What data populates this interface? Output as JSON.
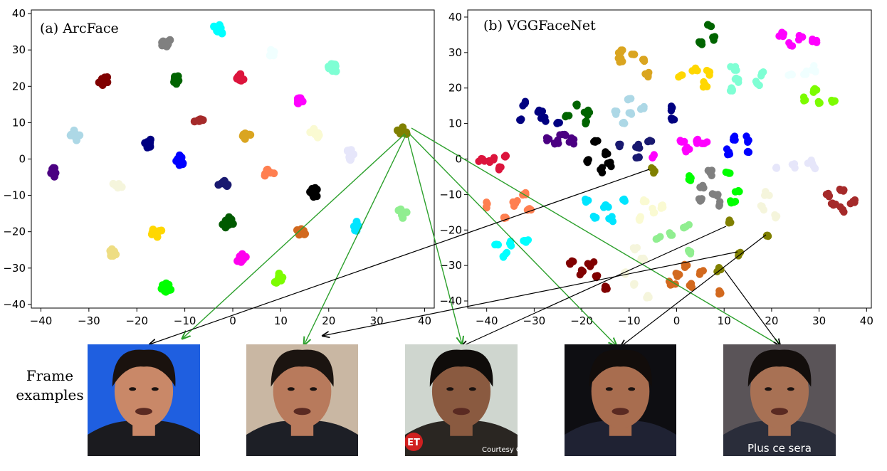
{
  "frames_label_line1": "Frame",
  "frames_label_line2": "examples",
  "frames": [
    {
      "bg": "#1f5fe0",
      "skin": "#c98868",
      "hair": "#1a120e",
      "shirt": "#1b1b1f",
      "overlay": ""
    },
    {
      "bg": "#c9b7a3",
      "skin": "#b87a5c",
      "hair": "#1b1410",
      "shirt": "#1d1f26",
      "overlay": ""
    },
    {
      "bg": "#cfd6cf",
      "skin": "#8a5a40",
      "hair": "#0f0c0a",
      "shirt": "#2a2622",
      "overlay": "Courtesy Cl",
      "logo": "ET"
    },
    {
      "bg": "#0e0e12",
      "skin": "#a86d4f",
      "hair": "#120d0b",
      "shirt": "#1f2233",
      "overlay": ""
    },
    {
      "bg": "#5a5458",
      "skin": "#a87154",
      "hair": "#130e0c",
      "shirt": "#2a2d3a",
      "overlay": "Plus ce sera"
    }
  ],
  "chart_data": [
    {
      "type": "scatter",
      "title": "(a) ArcFace",
      "xlim": [
        -42,
        42
      ],
      "ylim": [
        -41,
        41
      ],
      "xticks": [
        -40,
        -30,
        -20,
        -10,
        0,
        10,
        20,
        30,
        40
      ],
      "yticks": [
        -40,
        -30,
        -20,
        -10,
        0,
        10,
        20,
        30,
        40
      ],
      "series": [
        {
          "color": "#00ffff",
          "points": [
            [
              -3,
              35.5
            ]
          ]
        },
        {
          "color": "#808080",
          "points": [
            [
              -14,
              32
            ]
          ]
        },
        {
          "color": "#f0ffff",
          "points": [
            [
              8,
              29
            ]
          ]
        },
        {
          "color": "#7fffd4",
          "points": [
            [
              21,
              25
            ]
          ]
        },
        {
          "color": "#800000",
          "points": [
            [
              -27,
              21.5
            ]
          ]
        },
        {
          "color": "#006400",
          "points": [
            [
              -12,
              21.5
            ]
          ]
        },
        {
          "color": "#dc143c",
          "points": [
            [
              1.5,
              22.5
            ]
          ]
        },
        {
          "color": "#ff00ff",
          "points": [
            [
              14,
              16.5
            ]
          ]
        },
        {
          "color": "#a52a2a",
          "points": [
            [
              -7,
              10.5
            ]
          ]
        },
        {
          "color": "#fafad2",
          "points": [
            [
              17,
              7
            ]
          ]
        },
        {
          "color": "#add8e6",
          "points": [
            [
              -33,
              6.5
            ]
          ]
        },
        {
          "color": "#daa520",
          "points": [
            [
              2.5,
              6.5
            ]
          ]
        },
        {
          "color": "#808000",
          "points": [
            [
              35.5,
              7.5
            ]
          ]
        },
        {
          "color": "#000080",
          "points": [
            [
              -18,
              4.5
            ]
          ]
        },
        {
          "color": "#0000ff",
          "points": [
            [
              -11,
              -0.5
            ]
          ]
        },
        {
          "color": "#e6e6fa",
          "points": [
            [
              24.5,
              1
            ]
          ]
        },
        {
          "color": "#4b0082",
          "points": [
            [
              -37.5,
              -4
            ]
          ]
        },
        {
          "color": "#191970",
          "points": [
            [
              -2,
              -6.5
            ]
          ]
        },
        {
          "color": "#ff7f50",
          "points": [
            [
              7.5,
              -3.5
            ]
          ]
        },
        {
          "color": "#f5f5dc",
          "points": [
            [
              -24,
              -7.5
            ]
          ]
        },
        {
          "color": "#000000",
          "points": [
            [
              17,
              -9
            ]
          ]
        },
        {
          "color": "#90ee90",
          "points": [
            [
              35.5,
              -15
            ]
          ]
        },
        {
          "color": "#005a00",
          "points": [
            [
              -1,
              -17.5
            ]
          ]
        },
        {
          "color": "#ffd700",
          "points": [
            [
              -16,
              -20
            ]
          ]
        },
        {
          "color": "#d2691e",
          "points": [
            [
              14,
              -20.5
            ]
          ]
        },
        {
          "color": "#00e5ff",
          "points": [
            [
              26,
              -18.5
            ]
          ]
        },
        {
          "color": "#eedd82",
          "points": [
            [
              -25,
              -26
            ]
          ]
        },
        {
          "color": "#ff00ee",
          "points": [
            [
              2,
              -27.5
            ]
          ]
        },
        {
          "color": "#7cfc00",
          "points": [
            [
              9.5,
              -33
            ]
          ]
        },
        {
          "color": "#00ff00",
          "points": [
            [
              -14,
              -35.5
            ]
          ]
        }
      ]
    },
    {
      "type": "scatter",
      "title": "(b) VGGFaceNet",
      "xlim": [
        -44,
        41
      ],
      "ylim": [
        -42,
        42
      ],
      "xticks": [
        -40,
        -30,
        -20,
        -10,
        0,
        10,
        20,
        30,
        40
      ],
      "yticks": [
        -40,
        -30,
        -20,
        -10,
        0,
        10,
        20,
        30,
        40
      ],
      "series": [
        {
          "color": "#006400",
          "points": [
            [
              7,
              37.5
            ],
            [
              8,
              34
            ],
            [
              5,
              33
            ]
          ]
        },
        {
          "color": "#ff00ff",
          "points": [
            [
              22,
              35
            ],
            [
              26,
              34.5
            ],
            [
              29,
              33.5
            ],
            [
              24,
              32
            ]
          ]
        },
        {
          "color": "#daa520",
          "points": [
            [
              -12,
              30.5
            ],
            [
              -9,
              29.5
            ],
            [
              -12,
              27.5
            ],
            [
              -7,
              28
            ],
            [
              -6,
              23.5
            ]
          ]
        },
        {
          "color": "#ffd700",
          "points": [
            [
              1,
              23.5
            ],
            [
              4,
              25
            ],
            [
              7,
              24.5
            ],
            [
              6,
              21
            ]
          ]
        },
        {
          "color": "#7fffd4",
          "points": [
            [
              12,
              25.5
            ],
            [
              13,
              22.5
            ],
            [
              12,
              19.5
            ],
            [
              18,
              24
            ],
            [
              17,
              21
            ]
          ]
        },
        {
          "color": "#f0ffff",
          "points": [
            [
              24,
              24
            ],
            [
              27,
              24
            ],
            [
              29,
              25.5
            ]
          ]
        },
        {
          "color": "#7cfc00",
          "points": [
            [
              29,
              19
            ],
            [
              27,
              16.5
            ],
            [
              30,
              16
            ],
            [
              33,
              16
            ]
          ]
        },
        {
          "color": "#000080",
          "points": [
            [
              -32,
              15.5
            ],
            [
              -29,
              13.5
            ],
            [
              -33,
              11
            ],
            [
              -28,
              11
            ],
            [
              -25,
              10
            ],
            [
              -1,
              14
            ],
            [
              -1,
              11
            ]
          ]
        },
        {
          "color": "#006400",
          "points": [
            [
              -21,
              15
            ],
            [
              -19,
              13
            ],
            [
              -23,
              12
            ],
            [
              -19,
              10.5
            ]
          ]
        },
        {
          "color": "#add8e6",
          "points": [
            [
              -10,
              17
            ],
            [
              -13,
              13.5
            ],
            [
              -10,
              13
            ],
            [
              -7,
              14.5
            ],
            [
              -11,
              10
            ]
          ]
        },
        {
          "color": "#4b0082",
          "points": [
            [
              -27,
              5.5
            ],
            [
              -25,
              4.5
            ],
            [
              -22,
              5
            ],
            [
              -24,
              6.5
            ]
          ]
        },
        {
          "color": "#000000",
          "points": [
            [
              -17,
              5
            ],
            [
              -15,
              2
            ],
            [
              -19,
              -0.5
            ],
            [
              -14,
              -1.5
            ],
            [
              -16,
              -3
            ]
          ]
        },
        {
          "color": "#191970",
          "points": [
            [
              -12,
              3.5
            ],
            [
              -8,
              3.5
            ],
            [
              -6,
              5
            ],
            [
              -8,
              0.5
            ]
          ]
        },
        {
          "color": "#ff00ff",
          "points": [
            [
              1,
              5
            ],
            [
              4,
              5
            ],
            [
              6,
              4.5
            ],
            [
              2,
              2.5
            ],
            [
              -5,
              0.5
            ]
          ]
        },
        {
          "color": "#0000ff",
          "points": [
            [
              12,
              6
            ],
            [
              15,
              5.5
            ],
            [
              11,
              2
            ],
            [
              15,
              2
            ]
          ]
        },
        {
          "color": "#dc143c",
          "points": [
            [
              -39,
              0
            ],
            [
              -36,
              1
            ],
            [
              -37,
              -2.5
            ],
            [
              -41,
              -0.5
            ]
          ]
        },
        {
          "color": "#e6e6fa",
          "points": [
            [
              21,
              -2.5
            ],
            [
              25,
              -2
            ],
            [
              28,
              -1
            ],
            [
              29,
              -2.5
            ]
          ]
        },
        {
          "color": "#ff7f50",
          "points": [
            [
              -40,
              -13
            ],
            [
              -34,
              -12.5
            ],
            [
              -31,
              -14
            ],
            [
              -36,
              -16.5
            ],
            [
              -32,
              -10
            ]
          ]
        },
        {
          "color": "#00e5ff",
          "points": [
            [
              -19,
              -12
            ],
            [
              -15,
              -13
            ],
            [
              -17,
              -16.5
            ],
            [
              -14,
              -17
            ],
            [
              -11,
              -11.5
            ]
          ]
        },
        {
          "color": "#fafad2",
          "points": [
            [
              -7,
              -12
            ],
            [
              -5,
              -14.5
            ],
            [
              -3,
              -13
            ],
            [
              -8,
              -17
            ]
          ]
        },
        {
          "color": "#808080",
          "points": [
            [
              7,
              -4
            ],
            [
              5,
              -8
            ],
            [
              8,
              -10
            ],
            [
              5,
              -12
            ],
            [
              9,
              -13
            ]
          ]
        },
        {
          "color": "#00ff00",
          "points": [
            [
              3,
              -5.5
            ],
            [
              11,
              -4
            ],
            [
              13,
              -9
            ],
            [
              12,
              -12
            ]
          ]
        },
        {
          "color": "#f5f5dc",
          "points": [
            [
              19,
              -10
            ],
            [
              18,
              -14
            ],
            [
              21,
              -16
            ]
          ]
        },
        {
          "color": "#a52a2a",
          "points": [
            [
              32,
              -10
            ],
            [
              35,
              -9
            ],
            [
              35,
              -14
            ],
            [
              33,
              -13
            ],
            [
              37,
              -12
            ]
          ]
        },
        {
          "color": "#00ffff",
          "points": [
            [
              -38,
              -24.5
            ],
            [
              -35,
              -24
            ],
            [
              -32,
              -23
            ],
            [
              -36,
              -27
            ]
          ]
        },
        {
          "color": "#90ee90",
          "points": [
            [
              -4,
              -22
            ],
            [
              -1,
              -21.5
            ],
            [
              2,
              -19
            ],
            [
              3,
              -26
            ]
          ]
        },
        {
          "color": "#800000",
          "points": [
            [
              -22,
              -29
            ],
            [
              -18,
              -29.5
            ],
            [
              -20,
              -32
            ],
            [
              -17,
              -33
            ],
            [
              -15,
              -36.5
            ]
          ]
        },
        {
          "color": "#f5f5dc",
          "points": [
            [
              -9,
              -25
            ],
            [
              -7,
              -28
            ],
            [
              -11,
              -32
            ],
            [
              -9,
              -35.5
            ],
            [
              -6,
              -38.5
            ]
          ]
        },
        {
          "color": "#d2691e",
          "points": [
            [
              -1,
              -35
            ],
            [
              3,
              -35.5
            ],
            [
              0,
              -33
            ],
            [
              2,
              -30
            ],
            [
              5,
              -32
            ],
            [
              9,
              -38
            ]
          ]
        },
        {
          "color": "#808000",
          "points": [
            [
              -5,
              -3
            ],
            [
              11,
              -18
            ],
            [
              19,
              -21.5
            ],
            [
              13,
              -26.5
            ],
            [
              9,
              -31
            ]
          ]
        }
      ]
    }
  ]
}
